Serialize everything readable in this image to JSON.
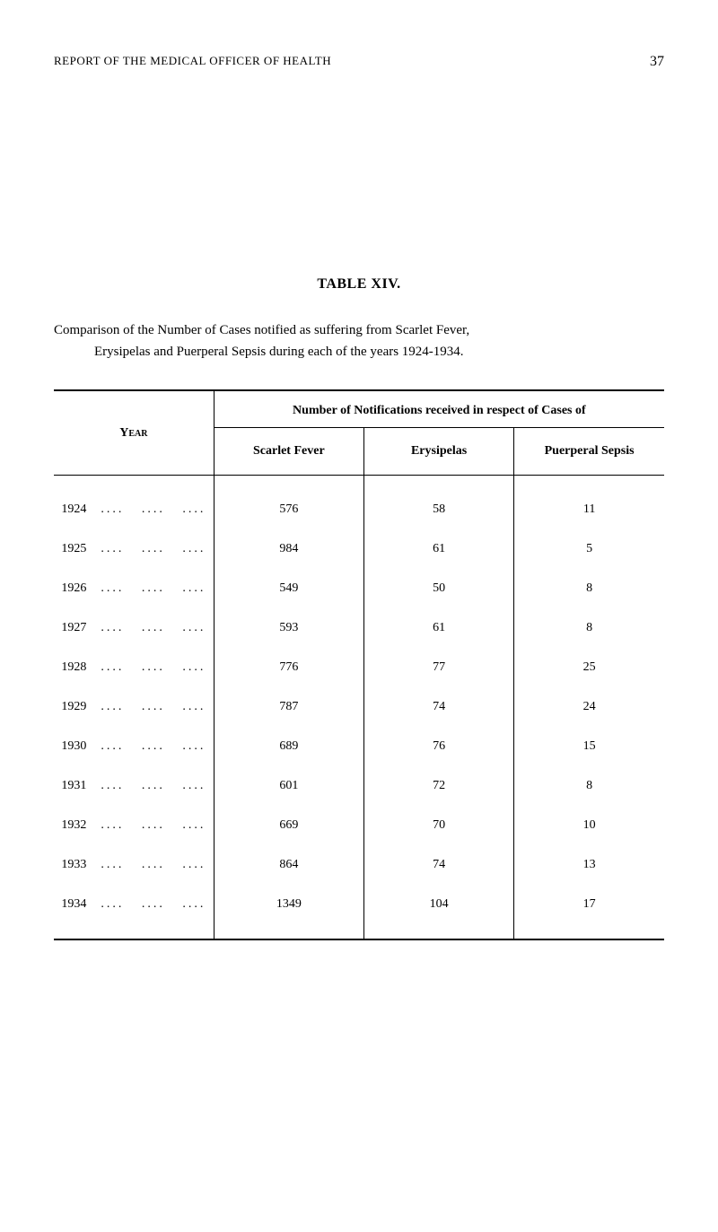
{
  "header": {
    "title": "REPORT OF THE MEDICAL OFFICER OF HEALTH",
    "page_number": "37"
  },
  "table_title": "TABLE XIV.",
  "description_line1": "Comparison of the Number of Cases notified as suffering from Scarlet Fever,",
  "description_line2": "Erysipelas and Puerperal Sepsis during each of the years 1924-1934.",
  "table": {
    "year_header": "Year",
    "notifications_header": "Number of Notifications received in respect of Cases of",
    "columns": {
      "scarlet_fever": "Scarlet Fever",
      "erysipelas": "Erysipelas",
      "puerperal_sepsis": "Puerperal Sepsis"
    },
    "rows": [
      {
        "year": "1924",
        "scarlet_fever": "576",
        "erysipelas": "58",
        "puerperal_sepsis": "11"
      },
      {
        "year": "1925",
        "scarlet_fever": "984",
        "erysipelas": "61",
        "puerperal_sepsis": "5"
      },
      {
        "year": "1926",
        "scarlet_fever": "549",
        "erysipelas": "50",
        "puerperal_sepsis": "8"
      },
      {
        "year": "1927",
        "scarlet_fever": "593",
        "erysipelas": "61",
        "puerperal_sepsis": "8"
      },
      {
        "year": "1928",
        "scarlet_fever": "776",
        "erysipelas": "77",
        "puerperal_sepsis": "25"
      },
      {
        "year": "1929",
        "scarlet_fever": "787",
        "erysipelas": "74",
        "puerperal_sepsis": "24"
      },
      {
        "year": "1930",
        "scarlet_fever": "689",
        "erysipelas": "76",
        "puerperal_sepsis": "15"
      },
      {
        "year": "1931",
        "scarlet_fever": "601",
        "erysipelas": "72",
        "puerperal_sepsis": "8"
      },
      {
        "year": "1932",
        "scarlet_fever": "669",
        "erysipelas": "70",
        "puerperal_sepsis": "10"
      },
      {
        "year": "1933",
        "scarlet_fever": "864",
        "erysipelas": "74",
        "puerperal_sepsis": "13"
      },
      {
        "year": "1934",
        "scarlet_fever": "1349",
        "erysipelas": "104",
        "puerperal_sepsis": "17"
      }
    ]
  }
}
